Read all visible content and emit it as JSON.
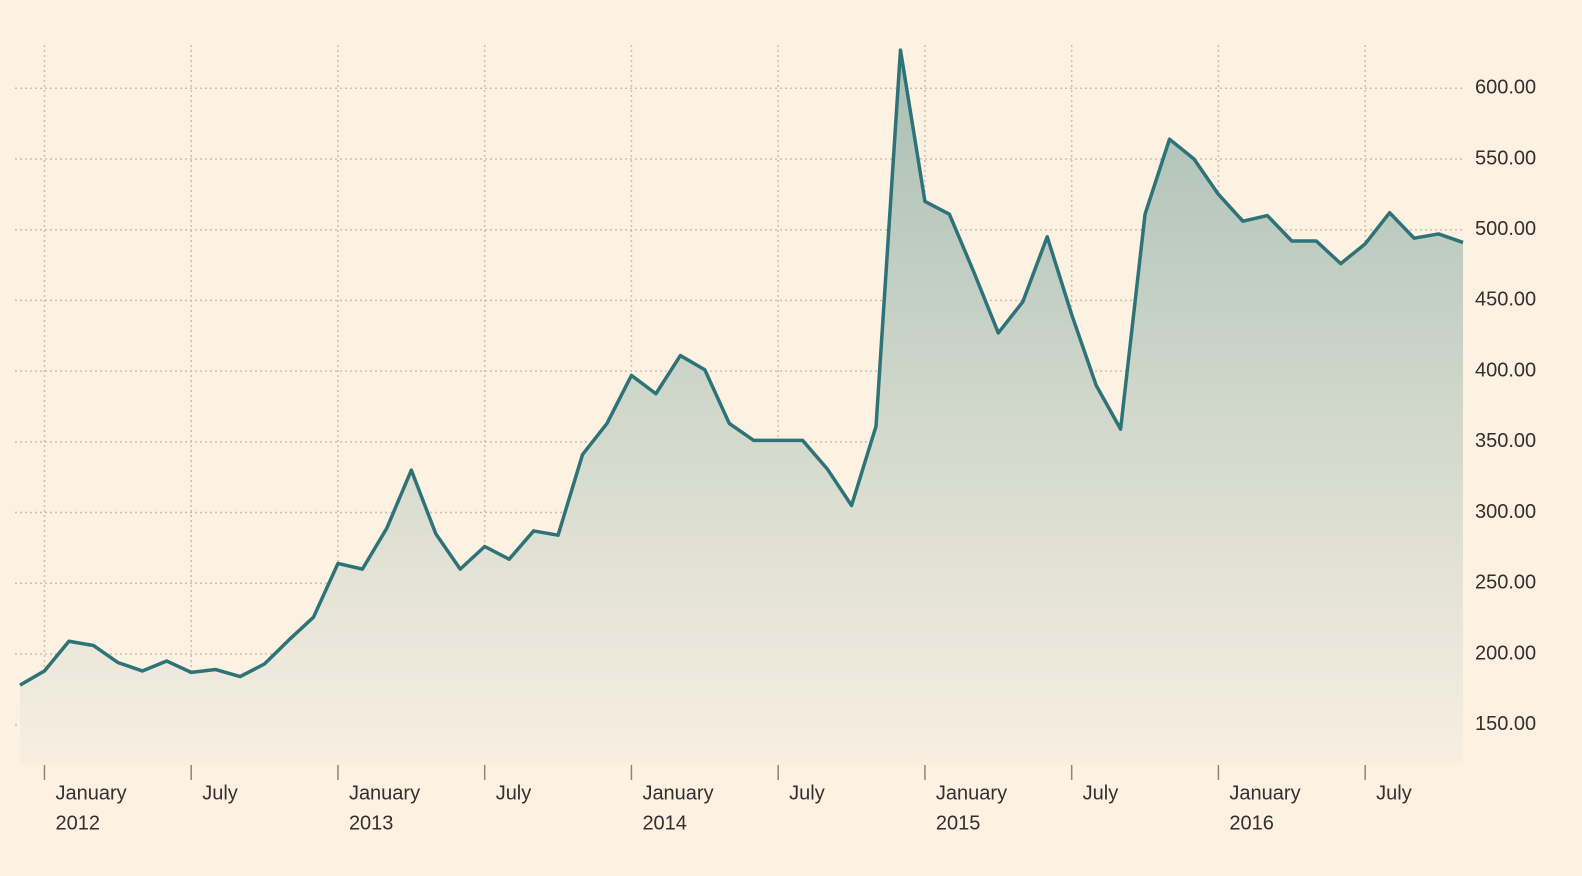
{
  "chart_data": {
    "type": "area",
    "x": [
      "2011-12",
      "2012-01",
      "2012-02",
      "2012-03",
      "2012-04",
      "2012-05",
      "2012-06",
      "2012-07",
      "2012-08",
      "2012-09",
      "2012-10",
      "2012-11",
      "2012-12",
      "2013-01",
      "2013-02",
      "2013-03",
      "2013-04",
      "2013-05",
      "2013-06",
      "2013-07",
      "2013-08",
      "2013-09",
      "2013-10",
      "2013-11",
      "2013-12",
      "2014-01",
      "2014-02",
      "2014-03",
      "2014-04",
      "2014-05",
      "2014-06",
      "2014-07",
      "2014-08",
      "2014-09",
      "2014-10",
      "2014-11",
      "2014-12",
      "2015-01",
      "2015-02",
      "2015-03",
      "2015-04",
      "2015-05",
      "2015-06",
      "2015-07",
      "2015-08",
      "2015-09",
      "2015-10",
      "2015-11",
      "2015-12",
      "2016-01",
      "2016-02",
      "2016-03",
      "2016-04",
      "2016-05",
      "2016-06",
      "2016-07",
      "2016-08",
      "2016-09",
      "2016-10",
      "2016-11"
    ],
    "values": [
      178,
      188,
      209,
      206,
      194,
      188,
      195,
      187,
      189,
      184,
      193,
      210,
      226,
      264,
      260,
      289,
      330,
      285,
      260,
      276,
      267,
      287,
      284,
      341,
      363,
      397,
      384,
      411,
      401,
      363,
      351,
      351,
      351,
      331,
      305,
      361,
      627,
      520,
      511,
      470,
      427,
      449,
      495,
      440,
      390,
      359,
      511,
      564,
      550,
      525,
      506,
      510,
      492,
      492,
      476,
      490,
      512,
      494,
      497,
      491
    ],
    "color": "#2e7377",
    "xlim": [
      "2011-12",
      "2016-11"
    ],
    "xticks": [
      {
        "value": "2012-01",
        "label": "January",
        "sublabel": "2012"
      },
      {
        "value": "2012-07",
        "label": "July"
      },
      {
        "value": "2013-01",
        "label": "January",
        "sublabel": "2013"
      },
      {
        "value": "2013-07",
        "label": "July"
      },
      {
        "value": "2014-01",
        "label": "January",
        "sublabel": "2014"
      },
      {
        "value": "2014-07",
        "label": "July"
      },
      {
        "value": "2015-01",
        "label": "January",
        "sublabel": "2015"
      },
      {
        "value": "2015-07",
        "label": "July"
      },
      {
        "value": "2016-01",
        "label": "January",
        "sublabel": "2016"
      },
      {
        "value": "2016-07",
        "label": "July"
      }
    ],
    "ylim": [
      121.5,
      630.6
    ],
    "yticks": [
      {
        "value": 150,
        "label": "150.00"
      },
      {
        "value": 200,
        "label": "200.00"
      },
      {
        "value": 250,
        "label": "250.00"
      },
      {
        "value": 300,
        "label": "300.00"
      },
      {
        "value": 350,
        "label": "350.00"
      },
      {
        "value": 400,
        "label": "400.00"
      },
      {
        "value": 450,
        "label": "450.00"
      },
      {
        "value": 500,
        "label": "500.00"
      },
      {
        "value": 550,
        "label": "550.00"
      },
      {
        "value": 600,
        "label": "600.00"
      }
    ],
    "grid": true
  }
}
